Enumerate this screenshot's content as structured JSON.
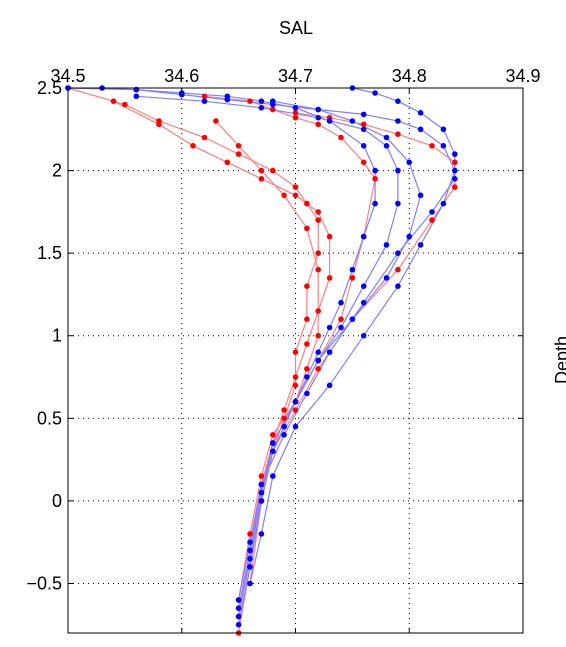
{
  "chart_data": {
    "type": "line",
    "title": "SAL",
    "xlabel": "SAL",
    "ylabel": "Depth",
    "xlim": [
      34.5,
      34.9
    ],
    "ylim": [
      -0.8,
      2.5
    ],
    "grid": true,
    "x_ticks": [
      "34.5",
      "34.6",
      "34.7",
      "34.8",
      "34.9"
    ],
    "y_ticks": [
      "2.5",
      "2",
      "1.5",
      "1",
      "0.5",
      "0",
      "−0.5"
    ],
    "colors": {
      "blue": "#0000ff",
      "red": "#ff0000",
      "blue_line": "#7f7fff",
      "red_line": "#ff7f7f"
    },
    "series": [
      {
        "color": "red",
        "x": [
          34.65,
          34.66,
          34.67,
          34.68,
          34.69,
          34.7,
          34.7,
          34.71,
          34.71,
          34.72,
          34.72,
          34.71,
          34.7,
          34.68,
          34.65,
          34.62,
          34.58,
          34.55,
          34.5
        ],
        "y": [
          -0.8,
          -0.4,
          0.0,
          0.3,
          0.5,
          0.7,
          0.9,
          1.1,
          1.3,
          1.5,
          1.7,
          1.8,
          1.9,
          2.0,
          2.1,
          2.2,
          2.3,
          2.4,
          2.5
        ]
      },
      {
        "color": "red",
        "x": [
          34.65,
          34.66,
          34.67,
          34.68,
          34.69,
          34.7,
          34.71,
          34.72,
          34.73,
          34.73,
          34.72,
          34.7,
          34.67,
          34.64,
          34.61,
          34.58,
          34.54
        ],
        "y": [
          -0.7,
          -0.3,
          0.1,
          0.35,
          0.55,
          0.75,
          0.95,
          1.15,
          1.35,
          1.6,
          1.75,
          1.85,
          1.95,
          2.05,
          2.15,
          2.28,
          2.42
        ]
      },
      {
        "color": "red",
        "x": [
          34.65,
          34.66,
          34.67,
          34.68,
          34.7,
          34.71,
          34.72,
          34.72,
          34.71,
          34.69,
          34.67,
          34.65,
          34.63
        ],
        "y": [
          -0.6,
          -0.2,
          0.15,
          0.4,
          0.6,
          0.8,
          1.0,
          1.4,
          1.65,
          1.85,
          2.0,
          2.15,
          2.3
        ]
      },
      {
        "color": "red",
        "x": [
          34.66,
          34.67,
          34.68,
          34.7,
          34.72,
          34.74,
          34.75,
          34.76,
          34.77,
          34.76,
          34.74,
          34.72,
          34.7,
          34.68,
          34.66,
          34.62
        ],
        "y": [
          -0.5,
          0.0,
          0.35,
          0.6,
          0.85,
          1.1,
          1.35,
          1.6,
          1.95,
          2.05,
          2.2,
          2.28,
          2.32,
          2.37,
          2.42,
          2.45
        ]
      },
      {
        "color": "red",
        "x": [
          34.66,
          34.67,
          34.68,
          34.7,
          34.72,
          34.75,
          34.79,
          34.82,
          34.84,
          34.84,
          34.82,
          34.79,
          34.76,
          34.73,
          34.7
        ],
        "y": [
          -0.4,
          0.0,
          0.3,
          0.55,
          0.8,
          1.1,
          1.4,
          1.7,
          1.9,
          2.05,
          2.15,
          2.22,
          2.28,
          2.32,
          2.35
        ]
      },
      {
        "color": "blue",
        "x": [
          34.65,
          34.66,
          34.67,
          34.68,
          34.69,
          34.7,
          34.71,
          34.72,
          34.73,
          34.74,
          34.75,
          34.76,
          34.77,
          34.77,
          34.76,
          34.73,
          34.7,
          34.67,
          34.64,
          34.6,
          34.56,
          34.5
        ],
        "y": [
          -0.75,
          -0.4,
          0.0,
          0.3,
          0.45,
          0.6,
          0.75,
          0.9,
          1.05,
          1.2,
          1.4,
          1.6,
          1.8,
          2.0,
          2.15,
          2.3,
          2.38,
          2.42,
          2.45,
          2.47,
          2.49,
          2.5
        ]
      },
      {
        "color": "blue",
        "x": [
          34.65,
          34.66,
          34.67,
          34.68,
          34.7,
          34.72,
          34.74,
          34.76,
          34.78,
          34.79,
          34.79,
          34.78,
          34.76,
          34.72,
          34.67,
          34.62,
          34.56
        ],
        "y": [
          -0.7,
          -0.35,
          0.05,
          0.35,
          0.6,
          0.85,
          1.05,
          1.3,
          1.55,
          1.8,
          2.0,
          2.15,
          2.25,
          2.32,
          2.38,
          2.42,
          2.45
        ]
      },
      {
        "color": "blue",
        "x": [
          34.65,
          34.66,
          34.67,
          34.68,
          34.7,
          34.72,
          34.75,
          34.78,
          34.8,
          34.81,
          34.8,
          34.78,
          34.75,
          34.72,
          34.68
        ],
        "y": [
          -0.65,
          -0.3,
          0.05,
          0.35,
          0.6,
          0.85,
          1.1,
          1.35,
          1.6,
          1.85,
          2.05,
          2.2,
          2.3,
          2.37,
          2.42
        ]
      },
      {
        "color": "blue",
        "x": [
          34.65,
          34.66,
          34.67,
          34.69,
          34.71,
          34.73,
          34.76,
          34.79,
          34.82,
          34.84,
          34.84,
          34.83,
          34.81,
          34.79,
          34.77,
          34.75
        ],
        "y": [
          -0.6,
          -0.25,
          0.1,
          0.4,
          0.65,
          0.9,
          1.2,
          1.5,
          1.75,
          1.95,
          2.1,
          2.25,
          2.35,
          2.42,
          2.47,
          2.5
        ]
      },
      {
        "color": "blue",
        "x": [
          34.66,
          34.67,
          34.68,
          34.7,
          34.73,
          34.76,
          34.79,
          34.81,
          34.83,
          34.84,
          34.83,
          34.81,
          34.79,
          34.76,
          34.72,
          34.68,
          34.64,
          34.6,
          34.56,
          34.53
        ],
        "y": [
          -0.5,
          -0.2,
          0.15,
          0.45,
          0.7,
          1.0,
          1.3,
          1.55,
          1.8,
          2.0,
          2.15,
          2.25,
          2.3,
          2.34,
          2.37,
          2.4,
          2.43,
          2.46,
          2.49,
          2.5
        ]
      }
    ]
  }
}
